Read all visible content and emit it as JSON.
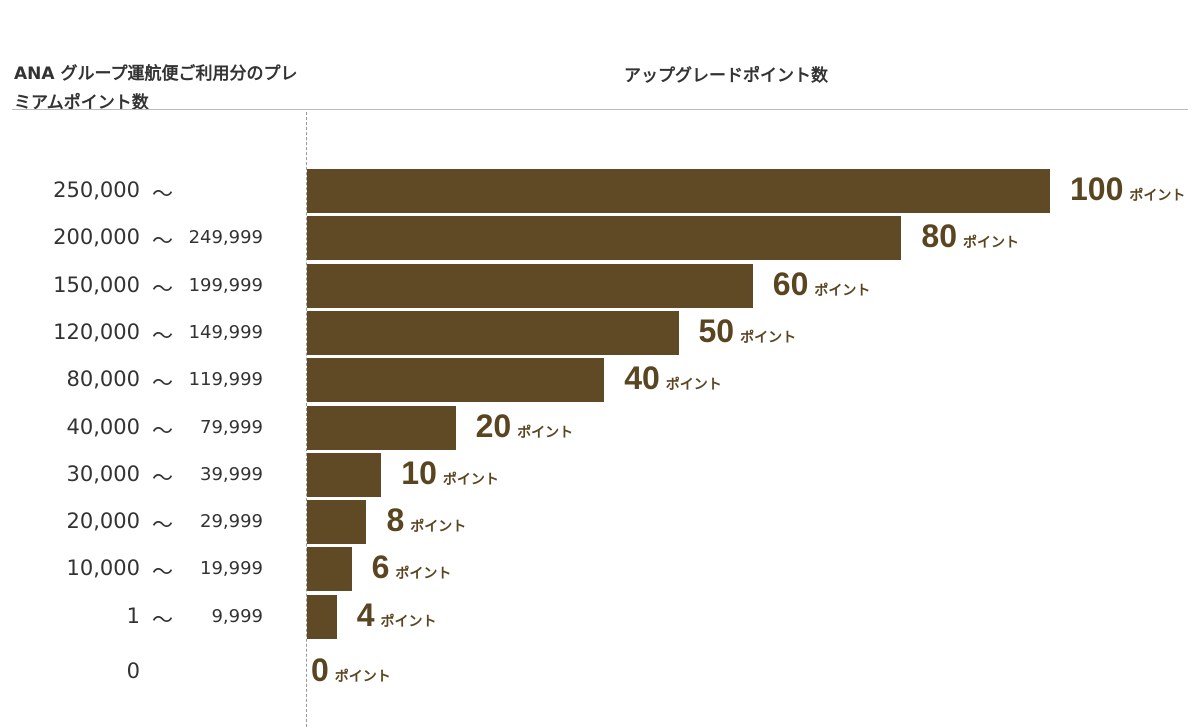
{
  "chart_data": {
    "type": "bar",
    "orientation": "horizontal",
    "title": "",
    "ylabel": "ANA グループ運航便ご利用分のプレミアムポイント数",
    "xlabel": "アップグレードポイント数",
    "unit": "ポイント",
    "range_separator": "〜",
    "categories": [
      {
        "from": "250,000",
        "to": ""
      },
      {
        "from": "200,000",
        "to": "249,999"
      },
      {
        "from": "150,000",
        "to": "199,999"
      },
      {
        "from": "120,000",
        "to": "149,999"
      },
      {
        "from": "80,000",
        "to": "119,999"
      },
      {
        "from": "40,000",
        "to": "79,999"
      },
      {
        "from": "30,000",
        "to": "39,999"
      },
      {
        "from": "20,000",
        "to": "29,999"
      },
      {
        "from": "10,000",
        "to": "19,999"
      },
      {
        "from": "1",
        "to": "9,999"
      },
      {
        "from": "0",
        "to": null
      }
    ],
    "values": [
      100,
      80,
      60,
      50,
      40,
      20,
      10,
      8,
      6,
      4,
      0
    ],
    "xlim": [
      0,
      100
    ],
    "grid": false,
    "bar_color": "#604a26",
    "label_color": "#5a4521"
  }
}
